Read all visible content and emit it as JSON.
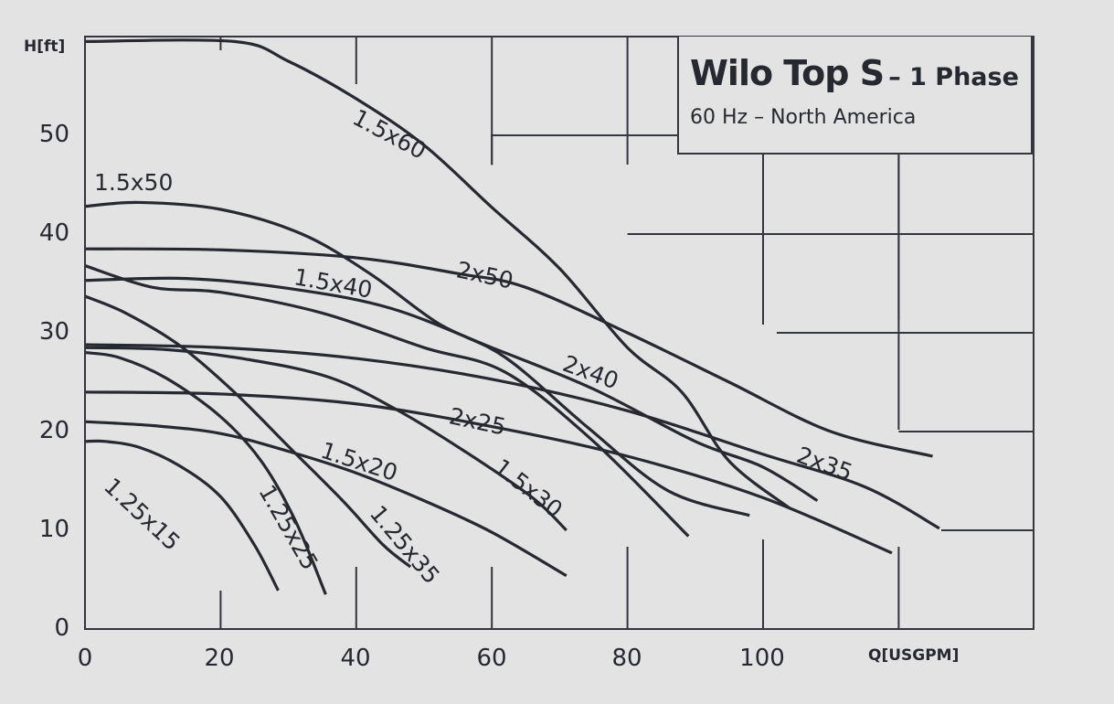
{
  "title": {
    "main": "Wilo Top S",
    "suffix": "– 1 Phase",
    "subtitle": "60 Hz – North America"
  },
  "axes": {
    "y_title": "H[ft]",
    "x_title": "Q[USGPM]",
    "y_ticks": [
      "0",
      "10",
      "20",
      "30",
      "40",
      "50"
    ],
    "x_ticks": [
      "0",
      "20",
      "40",
      "60",
      "80",
      "100"
    ]
  },
  "colors": {
    "background": "#e3e3e4",
    "line": "#262930",
    "grid": "#33363d"
  },
  "labels": {
    "c1_25x15": "1.25x15",
    "c1_25x25": "1.25x25",
    "c1_25x35": "1.25x35",
    "c1_5x20": "1.5x20",
    "c1_5x30": "1.5x30",
    "c1_5x40": "1.5x40",
    "c1_5x50": "1.5x50",
    "c1_5x60": "1.5x60",
    "c2x25": "2x25",
    "c2x35": "2x35",
    "c2x40": "2x40",
    "c2x50": "2x50"
  },
  "chart_data": {
    "type": "line",
    "title": "Wilo Top S – 1 Phase",
    "subtitle": "60 Hz – North America",
    "xlabel": "Q[USGPM]",
    "ylabel": "H[ft]",
    "xlim": [
      0,
      140
    ],
    "ylim": [
      0,
      59.5
    ],
    "x_ticks": [
      0,
      20,
      40,
      60,
      80,
      100
    ],
    "y_ticks": [
      0,
      10,
      20,
      30,
      40,
      50
    ],
    "grid": true,
    "series": [
      {
        "name": "1.25x15",
        "points": [
          [
            0,
            19
          ],
          [
            3,
            19
          ],
          [
            8,
            18.4
          ],
          [
            14,
            16.5
          ],
          [
            20,
            13.4
          ],
          [
            25,
            8.5
          ],
          [
            28.5,
            3.9
          ]
        ]
      },
      {
        "name": "1.25x25",
        "points": [
          [
            0,
            28
          ],
          [
            5,
            27.5
          ],
          [
            12,
            25.4
          ],
          [
            20,
            21.5
          ],
          [
            26,
            17
          ],
          [
            31,
            11
          ],
          [
            35.5,
            3.5
          ]
        ]
      },
      {
        "name": "1.25x35",
        "points": [
          [
            0,
            33.7
          ],
          [
            6,
            32
          ],
          [
            14,
            28.7
          ],
          [
            22,
            24
          ],
          [
            30,
            18.5
          ],
          [
            38,
            13
          ],
          [
            44,
            8.5
          ],
          [
            48,
            6.3
          ]
        ]
      },
      {
        "name": "1.5x20",
        "points": [
          [
            0,
            21
          ],
          [
            10,
            20.6
          ],
          [
            20,
            19.8
          ],
          [
            30,
            18
          ],
          [
            40,
            15.8
          ],
          [
            50,
            13
          ],
          [
            60,
            9.8
          ],
          [
            71,
            5.4
          ]
        ]
      },
      {
        "name": "1.5x30",
        "points": [
          [
            0,
            28.5
          ],
          [
            12,
            28.3
          ],
          [
            24,
            27.3
          ],
          [
            36,
            25.5
          ],
          [
            46,
            22.2
          ],
          [
            56,
            18
          ],
          [
            66,
            13.3
          ],
          [
            71,
            10
          ]
        ]
      },
      {
        "name": "1.5x40",
        "points": [
          [
            0,
            36.8
          ],
          [
            10,
            34.6
          ],
          [
            20,
            34.1
          ],
          [
            35,
            32
          ],
          [
            50,
            28.5
          ],
          [
            62,
            26
          ],
          [
            75,
            19
          ],
          [
            89,
            9.4
          ]
        ]
      },
      {
        "name": "1.5x50",
        "points": [
          [
            0,
            42.8
          ],
          [
            8,
            43.2
          ],
          [
            20,
            42.5
          ],
          [
            32,
            40
          ],
          [
            42,
            36
          ],
          [
            52,
            31
          ],
          [
            62,
            27.5
          ],
          [
            74,
            20.5
          ],
          [
            86,
            14
          ],
          [
            98,
            11.5
          ]
        ]
      },
      {
        "name": "1.5x60",
        "points": [
          [
            0,
            59.5
          ],
          [
            22,
            59.5
          ],
          [
            30,
            57.5
          ],
          [
            40,
            53.7
          ],
          [
            50,
            49
          ],
          [
            60,
            42.7
          ],
          [
            70,
            36.5
          ],
          [
            80,
            28.5
          ],
          [
            88,
            24
          ],
          [
            95,
            17
          ],
          [
            104,
            12.2
          ]
        ]
      },
      {
        "name": "2x25",
        "points": [
          [
            0,
            24
          ],
          [
            20,
            23.8
          ],
          [
            40,
            22.8
          ],
          [
            60,
            20.5
          ],
          [
            80,
            17.5
          ],
          [
            100,
            13.3
          ],
          [
            119,
            7.7
          ]
        ]
      },
      {
        "name": "2x35",
        "points": [
          [
            0,
            28.8
          ],
          [
            20,
            28.5
          ],
          [
            40,
            27.4
          ],
          [
            60,
            25.3
          ],
          [
            80,
            22.1
          ],
          [
            100,
            17.7
          ],
          [
            115,
            14.4
          ],
          [
            126,
            10.2
          ]
        ]
      },
      {
        "name": "2x40",
        "points": [
          [
            0,
            35.3
          ],
          [
            15,
            35.5
          ],
          [
            30,
            34.5
          ],
          [
            45,
            32.5
          ],
          [
            60,
            28.5
          ],
          [
            75,
            24.3
          ],
          [
            90,
            19
          ],
          [
            100,
            16.4
          ],
          [
            108,
            13
          ]
        ]
      },
      {
        "name": "2x50",
        "points": [
          [
            0,
            38.5
          ],
          [
            20,
            38.4
          ],
          [
            40,
            37.6
          ],
          [
            55,
            36
          ],
          [
            65,
            34.6
          ],
          [
            80,
            30
          ],
          [
            95,
            25
          ],
          [
            110,
            20
          ],
          [
            125,
            17.5
          ]
        ]
      }
    ]
  }
}
